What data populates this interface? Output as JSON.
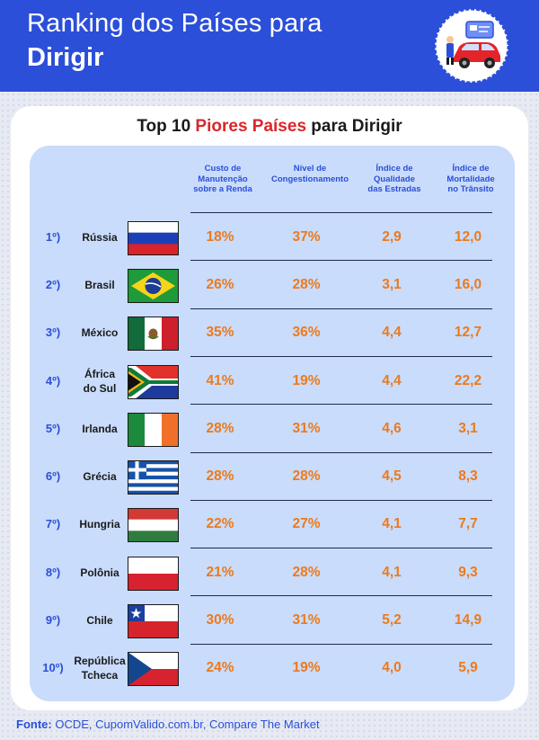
{
  "header": {
    "title_line1": "Ranking dos Países para",
    "title_line2": "Dirigir"
  },
  "card": {
    "title_prefix": "Top 10",
    "title_highlight": "Piores Países",
    "title_suffix": "para Dirigir"
  },
  "footer": {
    "label": "Fonte:",
    "text": "OCDE, CupomValido.com.br, Compare The Market"
  },
  "colors": {
    "header_blue": "#2b4fd8",
    "highlight_red": "#d9262c",
    "value_orange": "#ec7a1c",
    "panel_blue": "#c9dcfb"
  },
  "chart_data": {
    "type": "table",
    "title": "Top 10 Piores Países para Dirigir",
    "columns": [
      "Custo de Manutenção sobre a Renda",
      "Nível de Congestionamento",
      "Índice de Qualidade das Estradas",
      "Índice de Mortalidade no Trânsito"
    ],
    "rows": [
      {
        "rank": "1º)",
        "country": "Rússia",
        "flag": "russia-flag",
        "values": [
          "18%",
          "37%",
          "2,9",
          "12,0"
        ]
      },
      {
        "rank": "2º)",
        "country": "Brasil",
        "flag": "brazil-flag",
        "values": [
          "26%",
          "28%",
          "3,1",
          "16,0"
        ]
      },
      {
        "rank": "3º)",
        "country": "México",
        "flag": "mexico-flag",
        "values": [
          "35%",
          "36%",
          "4,4",
          "12,7"
        ]
      },
      {
        "rank": "4º)",
        "country": "África do Sul",
        "flag": "south-africa-flag",
        "values": [
          "41%",
          "19%",
          "4,4",
          "22,2"
        ]
      },
      {
        "rank": "5º)",
        "country": "Irlanda",
        "flag": "ireland-flag",
        "values": [
          "28%",
          "31%",
          "4,6",
          "3,1"
        ]
      },
      {
        "rank": "6º)",
        "country": "Grécia",
        "flag": "greece-flag",
        "values": [
          "28%",
          "28%",
          "4,5",
          "8,3"
        ]
      },
      {
        "rank": "7º)",
        "country": "Hungria",
        "flag": "hungary-flag",
        "values": [
          "22%",
          "27%",
          "4,1",
          "7,7"
        ]
      },
      {
        "rank": "8º)",
        "country": "Polônia",
        "flag": "poland-flag",
        "values": [
          "21%",
          "28%",
          "4,1",
          "9,3"
        ]
      },
      {
        "rank": "9º)",
        "country": "Chile",
        "flag": "chile-flag",
        "values": [
          "30%",
          "31%",
          "5,2",
          "14,9"
        ]
      },
      {
        "rank": "10º)",
        "country": "República Tcheca",
        "flag": "czech-flag",
        "values": [
          "24%",
          "19%",
          "4,0",
          "5,9"
        ]
      }
    ]
  }
}
